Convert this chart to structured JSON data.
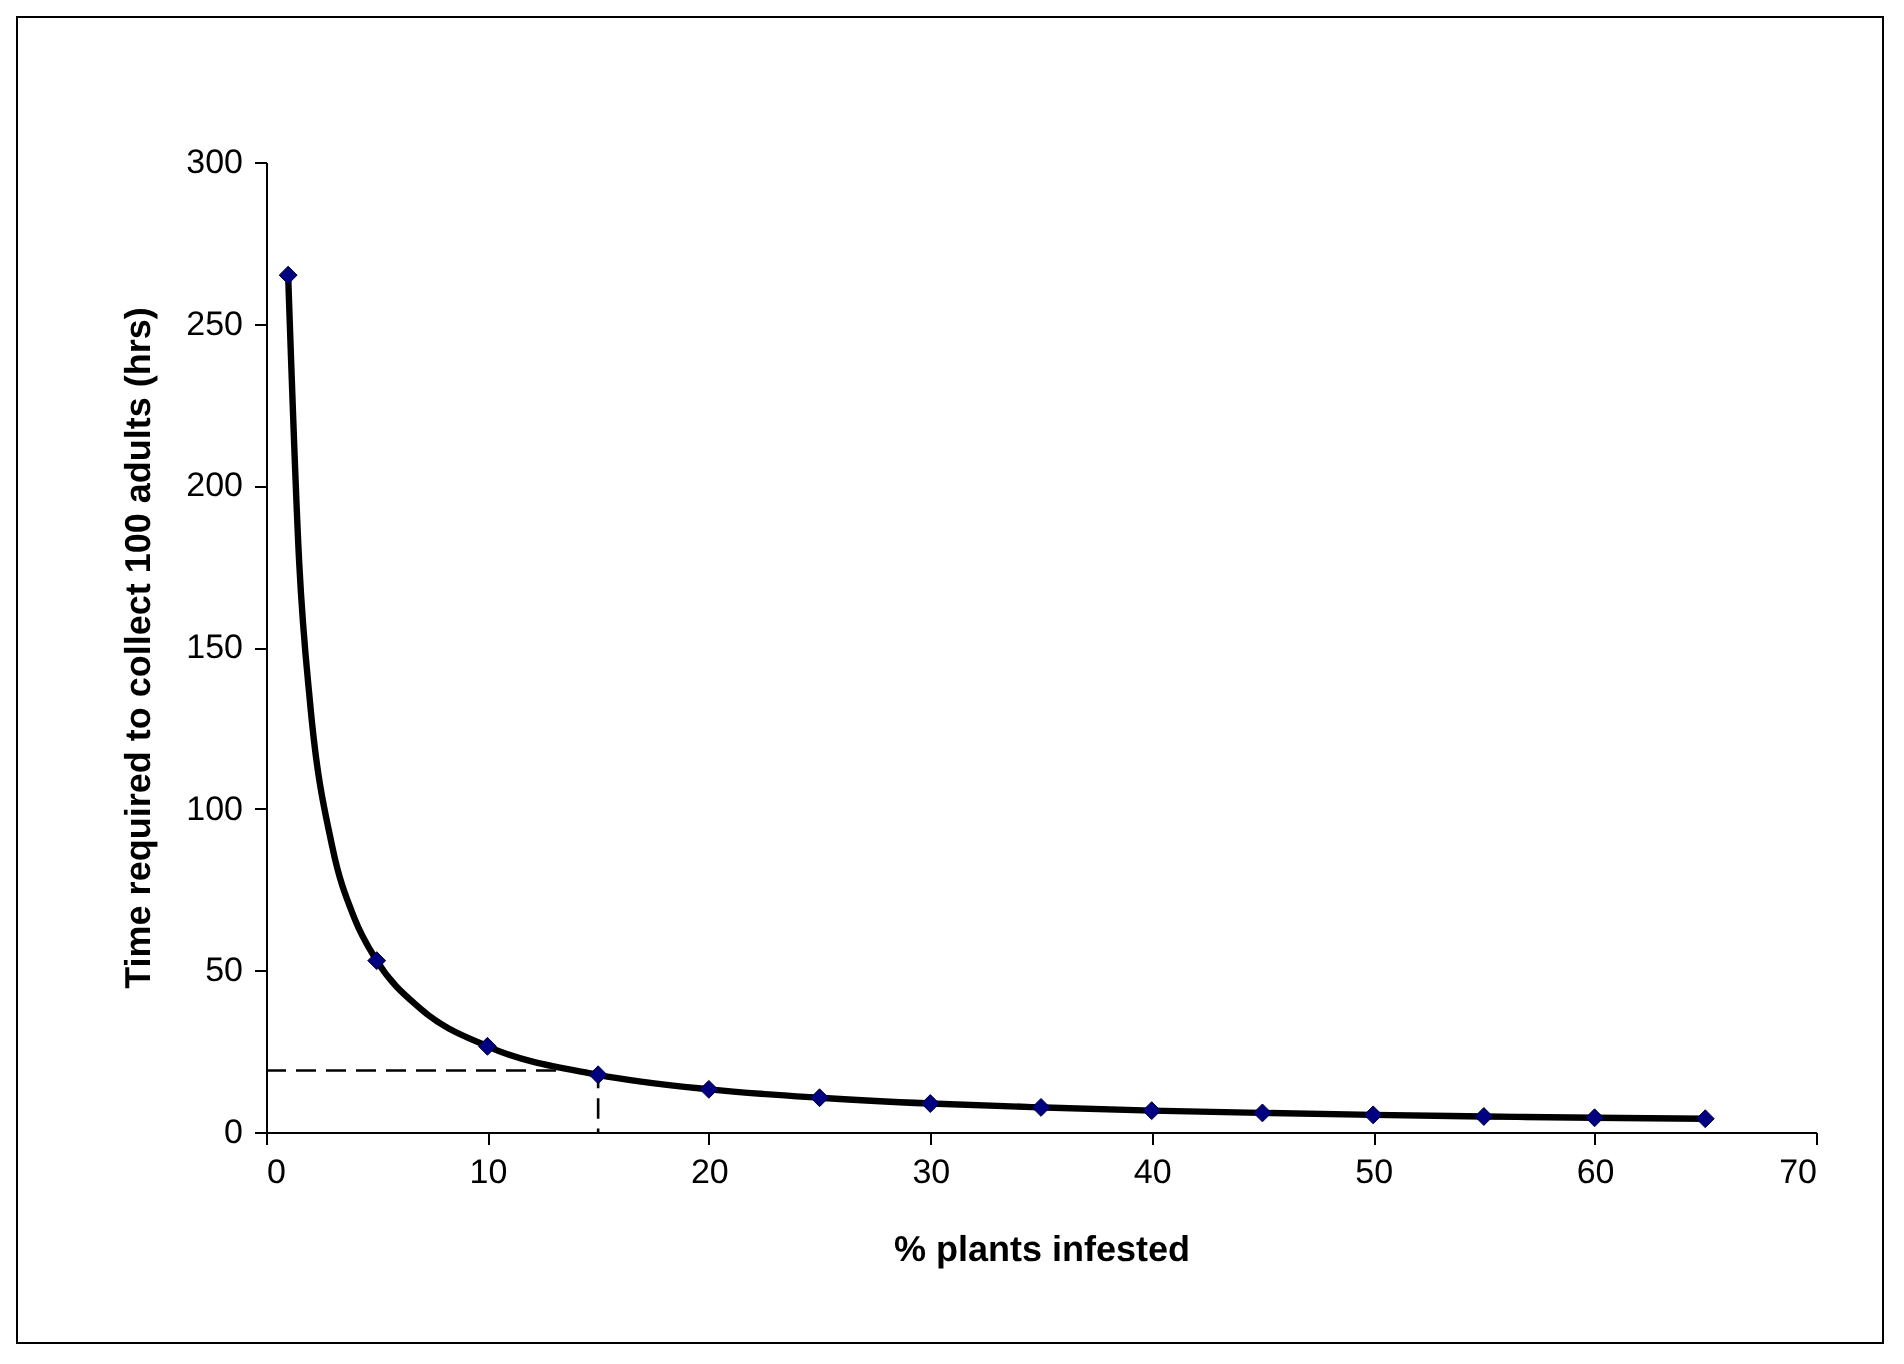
{
  "chart_data": {
    "type": "scatter",
    "xlabel": "% plants infested",
    "ylabel": "Time required to collect 100 adults (hrs)",
    "xlim": [
      0,
      70
    ],
    "xticks": [
      0,
      10,
      20,
      30,
      40,
      50,
      60,
      70
    ],
    "ylim": [
      0,
      300
    ],
    "yticks": [
      0,
      50,
      100,
      150,
      200,
      250,
      300
    ],
    "grid": false,
    "series": [
      {
        "type": "line",
        "color": "#000000",
        "marker": "none",
        "line_style": "dashed",
        "x": [
          0,
          15,
          15
        ],
        "values": [
          19,
          19,
          0
        ]
      },
      {
        "type": "line",
        "color": "#000000",
        "marker": "none",
        "line_style": "solid",
        "x": [
          1,
          1.5,
          2,
          3,
          4,
          5,
          7,
          10,
          15,
          20,
          25,
          30,
          35,
          40,
          45,
          50,
          55,
          60,
          65
        ],
        "values": [
          265,
          176,
          132,
          88,
          66,
          53,
          38,
          26.5,
          17.7,
          13.2,
          10.6,
          8.8,
          7.6,
          6.6,
          5.9,
          5.3,
          4.8,
          4.4,
          4.1
        ]
      },
      {
        "color": "#000080",
        "marker": "diamond",
        "x": [
          1,
          5,
          10,
          15,
          20,
          25,
          30,
          35,
          40,
          45,
          50,
          55,
          60,
          65
        ],
        "values": [
          265,
          53,
          26.5,
          17.7,
          13.2,
          10.6,
          8.8,
          7.6,
          6.6,
          5.9,
          5.3,
          4.8,
          4.4,
          4.1
        ]
      }
    ]
  }
}
